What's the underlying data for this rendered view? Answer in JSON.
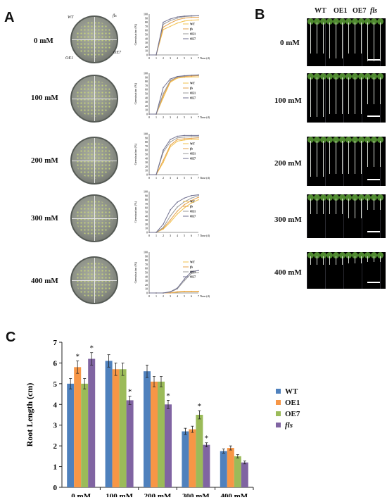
{
  "panels": {
    "a": "A",
    "b": "B",
    "c": "C"
  },
  "conditions": [
    "0 mM",
    "100 mM",
    "200 mM",
    "300 mM",
    "400 mM"
  ],
  "dish_labels": [
    "WT",
    "fls",
    "OE1",
    "OE7"
  ],
  "germination": {
    "ylabel": "Germination (%)",
    "xlabel": "Time (d)",
    "x": [
      0,
      1,
      2,
      3,
      4,
      5,
      6,
      7
    ],
    "legend": [
      "WT",
      "fls",
      "OE1",
      "OE7"
    ],
    "colors": [
      "#f2c14e",
      "#e6a14a",
      "#9a9a9a",
      "#6f6f8f"
    ],
    "yticks": [
      0,
      10,
      20,
      30,
      40,
      50,
      60,
      70,
      80,
      90,
      100
    ]
  },
  "photo_genotypes": [
    "WT",
    "OE1",
    "OE7",
    "fls"
  ],
  "chart_data": [
    {
      "type": "line",
      "panel": "A",
      "condition": "0 mM",
      "x": [
        0,
        1,
        2,
        3,
        4,
        5,
        6,
        7
      ],
      "ylim": [
        0,
        100
      ],
      "series": [
        {
          "name": "WT",
          "values": [
            0,
            0,
            62,
            70,
            78,
            83,
            85,
            86
          ]
        },
        {
          "name": "fls",
          "values": [
            0,
            0,
            68,
            78,
            86,
            90,
            92,
            92
          ]
        },
        {
          "name": "OE1",
          "values": [
            0,
            0,
            75,
            84,
            90,
            94,
            95,
            96
          ]
        },
        {
          "name": "OE7",
          "values": [
            0,
            0,
            80,
            88,
            93,
            95,
            96,
            96
          ]
        }
      ]
    },
    {
      "type": "line",
      "panel": "A",
      "condition": "100 mM",
      "x": [
        0,
        1,
        2,
        3,
        4,
        5,
        6,
        7
      ],
      "ylim": [
        0,
        100
      ],
      "series": [
        {
          "name": "WT",
          "values": [
            0,
            0,
            40,
            78,
            88,
            90,
            91,
            91
          ]
        },
        {
          "name": "fls",
          "values": [
            0,
            0,
            45,
            80,
            90,
            92,
            93,
            94
          ]
        },
        {
          "name": "OE1",
          "values": [
            0,
            0,
            50,
            82,
            91,
            93,
            95,
            95
          ]
        },
        {
          "name": "OE7",
          "values": [
            0,
            0,
            65,
            86,
            92,
            94,
            95,
            96
          ]
        }
      ]
    },
    {
      "type": "line",
      "panel": "A",
      "condition": "200 mM",
      "x": [
        0,
        1,
        2,
        3,
        4,
        5,
        6,
        7
      ],
      "ylim": [
        0,
        100
      ],
      "series": [
        {
          "name": "WT",
          "values": [
            0,
            0,
            30,
            68,
            82,
            85,
            86,
            86
          ]
        },
        {
          "name": "fls",
          "values": [
            0,
            0,
            35,
            72,
            86,
            88,
            89,
            90
          ]
        },
        {
          "name": "OE1",
          "values": [
            0,
            0,
            55,
            80,
            90,
            92,
            93,
            93
          ]
        },
        {
          "name": "OE7",
          "values": [
            0,
            0,
            60,
            86,
            94,
            96,
            96,
            96
          ]
        }
      ]
    },
    {
      "type": "line",
      "panel": "A",
      "condition": "300 mM",
      "x": [
        0,
        1,
        2,
        3,
        4,
        5,
        6,
        7
      ],
      "ylim": [
        0,
        100
      ],
      "series": [
        {
          "name": "WT",
          "values": [
            0,
            0,
            8,
            25,
            45,
            60,
            72,
            80
          ]
        },
        {
          "name": "fls",
          "values": [
            0,
            0,
            10,
            30,
            52,
            68,
            78,
            86
          ]
        },
        {
          "name": "OE1",
          "values": [
            0,
            0,
            12,
            40,
            62,
            75,
            84,
            90
          ]
        },
        {
          "name": "OE7",
          "values": [
            0,
            0,
            20,
            55,
            74,
            84,
            90,
            92
          ]
        }
      ]
    },
    {
      "type": "line",
      "panel": "A",
      "condition": "400 mM",
      "x": [
        0,
        1,
        2,
        3,
        4,
        5,
        6,
        7
      ],
      "ylim": [
        0,
        100
      ],
      "series": [
        {
          "name": "WT",
          "values": [
            0,
            0,
            0,
            0,
            2,
            3,
            3,
            3
          ]
        },
        {
          "name": "fls",
          "values": [
            0,
            0,
            0,
            0,
            3,
            4,
            4,
            4
          ]
        },
        {
          "name": "OE1",
          "values": [
            0,
            0,
            0,
            2,
            10,
            30,
            48,
            50
          ]
        },
        {
          "name": "OE7",
          "values": [
            0,
            0,
            0,
            3,
            12,
            34,
            52,
            55
          ]
        }
      ]
    },
    {
      "type": "bar",
      "panel": "C",
      "categories": [
        "0 mM",
        "100 mM",
        "200 mM",
        "300 mM",
        "400 mM"
      ],
      "ylabel": "Root Length (cm)",
      "xlabel": "",
      "ylim": [
        0,
        7
      ],
      "yticks": [
        0,
        1,
        2,
        3,
        4,
        5,
        6,
        7
      ],
      "legend_position": "right",
      "series": [
        {
          "name": "WT",
          "color": "#4f81bd",
          "values": [
            5.0,
            6.1,
            5.6,
            2.7,
            1.75
          ],
          "errors": [
            0.25,
            0.3,
            0.3,
            0.15,
            0.1
          ]
        },
        {
          "name": "OE1",
          "color": "#f79646",
          "values": [
            5.8,
            5.7,
            5.1,
            2.8,
            1.9
          ],
          "errors": [
            0.3,
            0.3,
            0.25,
            0.15,
            0.1
          ]
        },
        {
          "name": "OE7",
          "color": "#9bbb59",
          "values": [
            5.0,
            5.7,
            5.1,
            3.5,
            1.5
          ],
          "errors": [
            0.25,
            0.3,
            0.25,
            0.2,
            0.08
          ]
        },
        {
          "name": "fls",
          "color": "#8064a2",
          "values": [
            6.2,
            4.2,
            4.0,
            2.05,
            1.2
          ],
          "errors": [
            0.3,
            0.2,
            0.2,
            0.1,
            0.07
          ]
        }
      ],
      "significance": [
        [
          false,
          true,
          false,
          true
        ],
        [
          false,
          false,
          false,
          true
        ],
        [
          false,
          false,
          false,
          true
        ],
        [
          false,
          false,
          true,
          true
        ],
        [
          false,
          false,
          false,
          false
        ]
      ]
    }
  ]
}
